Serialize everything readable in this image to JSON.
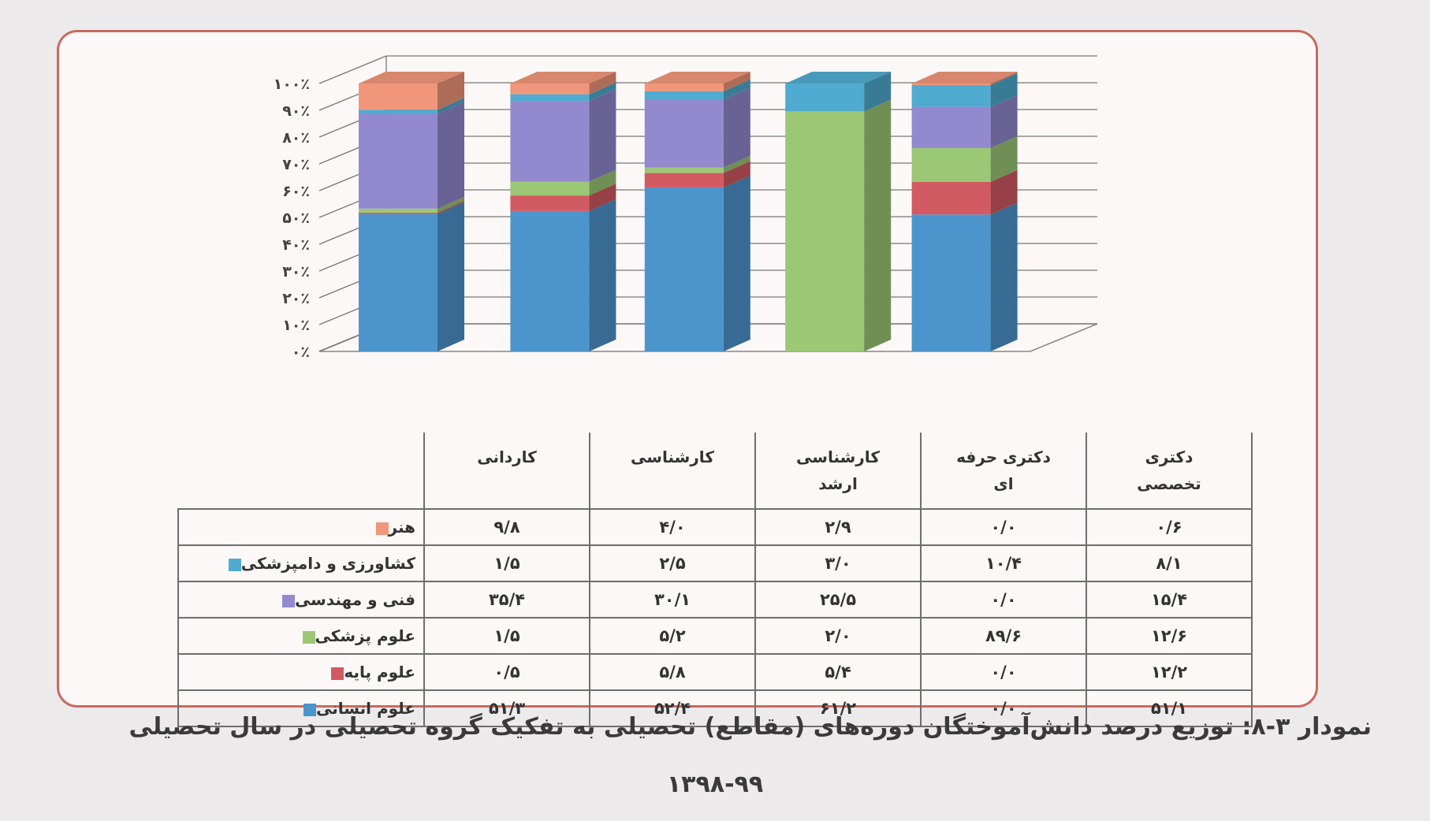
{
  "chart_data": {
    "type": "bar",
    "stacked": true,
    "three_d": true,
    "categories": [
      "کاردانی",
      "کارشناسی",
      "کارشناسی ارشد",
      "دکتری حرفه ای",
      "دکتری تخصصی"
    ],
    "category_lines": [
      [
        "کاردانی"
      ],
      [
        "کارشناسی"
      ],
      [
        "کارشناسی",
        "ارشد"
      ],
      [
        "دکتری حرفه",
        "ای"
      ],
      [
        "دکتری",
        "تخصصی"
      ]
    ],
    "y_ticks": [
      "۰٪",
      "۱۰٪",
      "۲۰٪",
      "۳۰٪",
      "۴۰٪",
      "۵۰٪",
      "۶۰٪",
      "۷۰٪",
      "۸۰٪",
      "۹۰٪",
      "۱۰۰٪"
    ],
    "ylim": [
      0,
      100
    ],
    "series": [
      {
        "name": "علوم انسانی",
        "color": "#4c95cc",
        "values": [
          51.3,
          52.4,
          61.2,
          0.0,
          51.1
        ],
        "labels": [
          "۵۱/۳",
          "۵۲/۴",
          "۶۱/۲",
          "۰/۰",
          "۵۱/۱"
        ]
      },
      {
        "name": "علوم پایه",
        "color": "#d25a62",
        "values": [
          0.5,
          5.8,
          5.4,
          0.0,
          12.2
        ],
        "labels": [
          "۰/۵",
          "۵/۸",
          "۵/۴",
          "۰/۰",
          "۱۲/۲"
        ]
      },
      {
        "name": "علوم پزشکی",
        "color": "#9cc774",
        "values": [
          1.5,
          5.2,
          2.0,
          89.6,
          12.6
        ],
        "labels": [
          "۱/۵",
          "۵/۲",
          "۲/۰",
          "۸۹/۶",
          "۱۲/۶"
        ]
      },
      {
        "name": "فنی و مهندسی",
        "color": "#9289cf",
        "values": [
          35.4,
          30.1,
          25.5,
          0.0,
          15.4
        ],
        "labels": [
          "۳۵/۴",
          "۳۰/۱",
          "۲۵/۵",
          "۰/۰",
          "۱۵/۴"
        ]
      },
      {
        "name": "کشاورزی و دامپزشکی",
        "color": "#4fabcf",
        "values": [
          1.5,
          2.5,
          3.0,
          10.4,
          8.1
        ],
        "labels": [
          "۱/۵",
          "۲/۵",
          "۳/۰",
          "۱۰/۴",
          "۸/۱"
        ]
      },
      {
        "name": "هنر",
        "color": "#f0967a",
        "values": [
          9.8,
          4.0,
          2.9,
          0.0,
          0.6
        ],
        "labels": [
          "۹/۸",
          "۴/۰",
          "۲/۹",
          "۰/۰",
          "۰/۶"
        ]
      }
    ],
    "table_row_order": [
      "هنر",
      "کشاورزی و دامپزشکی",
      "فنی و مهندسی",
      "علوم پزشکی",
      "علوم پایه",
      "علوم انسانی"
    ],
    "grid": true
  },
  "caption": {
    "line1": "نمودار ۳-۸: توزیع درصد دانش‌آموختگان دوره‌های (مقاطع) تحصیلی به تفکیک گروه تحصیلی در سال تحصیلی",
    "line2": "۱۳۹۸-۹۹"
  }
}
